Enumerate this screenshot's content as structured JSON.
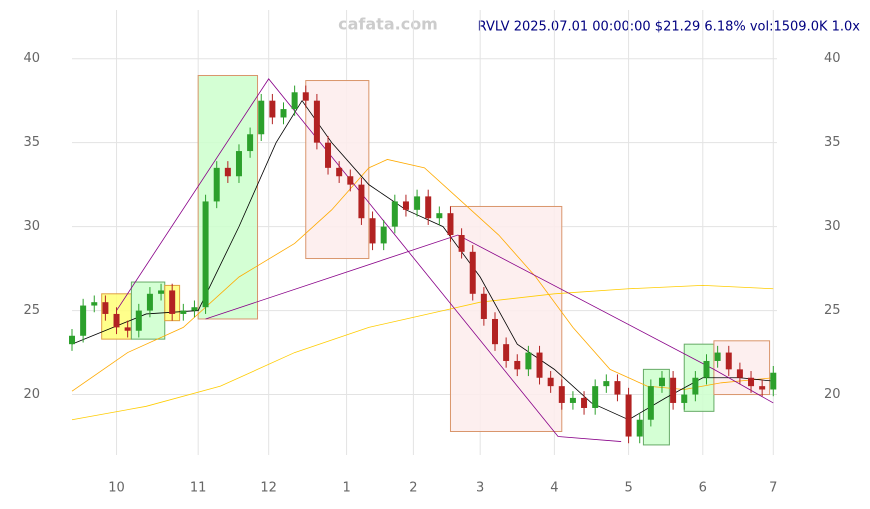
{
  "chart_data": {
    "type": "candlestick",
    "title": "RVLV 2025.07.01 00:00:00 $21.29 6.18% vol:1509.0K 1.0x",
    "watermark": "cafata.com",
    "xlim": [
      0,
      190
    ],
    "ylim": [
      16.4,
      42.9
    ],
    "xticks": [
      {
        "value": 12,
        "label": "10"
      },
      {
        "value": 34,
        "label": "11"
      },
      {
        "value": 53,
        "label": "12"
      },
      {
        "value": 74,
        "label": "1"
      },
      {
        "value": 92,
        "label": "2"
      },
      {
        "value": 110,
        "label": "3"
      },
      {
        "value": 130,
        "label": "4"
      },
      {
        "value": 150,
        "label": "5"
      },
      {
        "value": 170,
        "label": "6"
      },
      {
        "value": 189,
        "label": "7"
      }
    ],
    "yticks": [
      20,
      25,
      30,
      35,
      40
    ],
    "grid": true,
    "up_color": "#2ca02c",
    "down_color": "#b22222",
    "candles": {
      "x": [
        0,
        3,
        6,
        9,
        12,
        15,
        18,
        21,
        24,
        27,
        30,
        33,
        36,
        39,
        42,
        45,
        48,
        51,
        54,
        57,
        60,
        63,
        66,
        69,
        72,
        75,
        78,
        81,
        84,
        87,
        90,
        93,
        96,
        99,
        102,
        105,
        108,
        111,
        114,
        117,
        120,
        123,
        126,
        129,
        132,
        135,
        138,
        141,
        144,
        147,
        150,
        153,
        156,
        159,
        162,
        165,
        168,
        171,
        174,
        177,
        180,
        183,
        186,
        189
      ],
      "open": [
        23.0,
        23.5,
        25.3,
        25.5,
        24.8,
        24.0,
        23.8,
        25.0,
        26.0,
        26.2,
        24.8,
        25.0,
        25.2,
        31.5,
        33.5,
        33.0,
        34.5,
        35.5,
        37.5,
        36.5,
        37.0,
        38.0,
        37.5,
        35.0,
        33.5,
        33.0,
        32.5,
        30.5,
        29.0,
        30.0,
        31.5,
        31.0,
        31.8,
        30.5,
        30.8,
        29.5,
        28.5,
        26.0,
        24.5,
        23.0,
        22.0,
        21.5,
        22.5,
        21.0,
        20.5,
        19.5,
        19.8,
        19.2,
        20.5,
        20.8,
        20.0,
        17.5,
        18.5,
        20.5,
        21.0,
        19.5,
        20.0,
        21.0,
        22.0,
        22.5,
        21.5,
        21.0,
        20.5,
        20.3
      ],
      "high": [
        23.9,
        25.7,
        25.9,
        25.9,
        25.2,
        24.4,
        25.4,
        26.4,
        26.6,
        26.6,
        25.4,
        25.6,
        31.9,
        33.9,
        33.9,
        34.9,
        35.9,
        37.9,
        37.9,
        37.4,
        38.4,
        38.4,
        37.9,
        35.4,
        33.9,
        33.4,
        32.9,
        30.9,
        30.4,
        31.9,
        31.9,
        32.2,
        32.2,
        31.2,
        31.2,
        29.9,
        28.9,
        26.4,
        24.9,
        23.4,
        22.4,
        22.9,
        22.9,
        21.4,
        20.9,
        20.2,
        20.2,
        20.9,
        21.2,
        21.2,
        20.4,
        18.9,
        20.9,
        21.4,
        21.4,
        20.4,
        21.4,
        22.4,
        22.9,
        22.9,
        21.9,
        21.4,
        20.9,
        21.7
      ],
      "low": [
        22.6,
        23.1,
        24.9,
        24.4,
        23.6,
        23.4,
        23.4,
        24.6,
        25.6,
        24.4,
        24.4,
        24.6,
        24.8,
        31.1,
        32.6,
        32.6,
        34.1,
        35.1,
        36.1,
        36.1,
        36.6,
        37.1,
        34.6,
        33.1,
        32.6,
        32.1,
        30.1,
        28.6,
        28.6,
        29.6,
        30.6,
        30.6,
        30.1,
        30.1,
        29.1,
        28.1,
        25.6,
        24.1,
        22.6,
        21.6,
        21.1,
        21.1,
        20.6,
        20.1,
        19.1,
        19.1,
        18.8,
        18.8,
        20.1,
        19.6,
        17.1,
        17.1,
        18.1,
        20.1,
        19.1,
        19.1,
        19.6,
        20.6,
        21.6,
        21.1,
        20.6,
        20.1,
        19.9,
        19.9
      ],
      "close": [
        23.5,
        25.3,
        25.5,
        24.8,
        24.0,
        23.8,
        25.0,
        26.0,
        26.2,
        24.8,
        25.0,
        25.2,
        31.5,
        33.5,
        33.0,
        34.5,
        35.5,
        37.5,
        36.5,
        37.0,
        38.0,
        37.5,
        35.0,
        33.5,
        33.0,
        32.5,
        30.5,
        29.0,
        30.0,
        31.5,
        31.0,
        31.8,
        30.5,
        30.8,
        29.5,
        28.5,
        26.0,
        24.5,
        23.0,
        22.0,
        21.5,
        22.5,
        21.0,
        20.5,
        19.5,
        19.8,
        19.2,
        20.5,
        20.8,
        20.0,
        17.5,
        18.5,
        20.5,
        21.0,
        19.5,
        20.0,
        21.0,
        22.0,
        22.5,
        21.5,
        21.0,
        20.5,
        20.3,
        21.3
      ]
    },
    "boxes": [
      {
        "x": [
          8,
          16
        ],
        "y": [
          23.3,
          26.0
        ],
        "color": "#ffff77",
        "edge": "#e0a040"
      },
      {
        "x": [
          16,
          25
        ],
        "y": [
          23.3,
          26.7
        ],
        "color": "#ccffcc",
        "edge": "#66aa66"
      },
      {
        "x": [
          25,
          29
        ],
        "y": [
          24.4,
          26.5
        ],
        "color": "#ffff77",
        "edge": "#e0a040"
      },
      {
        "x": [
          34,
          50
        ],
        "y": [
          24.5,
          39.0
        ],
        "color": "#ccffcc",
        "edge": "#d9956b"
      },
      {
        "x": [
          63,
          80
        ],
        "y": [
          28.1,
          38.7
        ],
        "color": "#fdecec",
        "edge": "#d9956b"
      },
      {
        "x": [
          102,
          132
        ],
        "y": [
          17.8,
          31.2
        ],
        "color": "#fdecec",
        "edge": "#d9956b"
      },
      {
        "x": [
          154,
          161
        ],
        "y": [
          17.0,
          21.5
        ],
        "color": "#ccffcc",
        "edge": "#66aa66"
      },
      {
        "x": [
          165,
          173
        ],
        "y": [
          19.0,
          23.0
        ],
        "color": "#ccffcc",
        "edge": "#66aa66"
      },
      {
        "x": [
          173,
          188
        ],
        "y": [
          20.0,
          23.2
        ],
        "color": "#fdecec",
        "edge": "#d9956b"
      }
    ],
    "series": [
      {
        "color": "#ffcc00",
        "x": [
          0,
          20,
          40,
          60,
          80,
          100,
          110,
          130,
          150,
          170,
          189
        ],
        "values": [
          18.5,
          19.3,
          20.5,
          22.5,
          24.0,
          25.0,
          25.5,
          26.0,
          26.3,
          26.5,
          26.3
        ]
      },
      {
        "color": "#ffaa00",
        "x": [
          0,
          15,
          30,
          45,
          60,
          70,
          80,
          85,
          95,
          105,
          115,
          125,
          135,
          145,
          155,
          165,
          175,
          189
        ],
        "values": [
          20.2,
          22.5,
          24.0,
          27.0,
          29.0,
          31.0,
          33.5,
          34.0,
          33.5,
          31.5,
          29.5,
          27.0,
          24.0,
          21.5,
          20.5,
          20.3,
          20.7,
          21.0
        ]
      },
      {
        "color": "#000000",
        "x": [
          0,
          20,
          34,
          45,
          55,
          62,
          70,
          80,
          90,
          100,
          110,
          120,
          130,
          140,
          150,
          160,
          170,
          180,
          189
        ],
        "values": [
          23.0,
          24.8,
          25.0,
          30.0,
          35.0,
          37.5,
          35.0,
          32.5,
          31.0,
          30.0,
          27.0,
          23.0,
          21.5,
          19.5,
          18.5,
          19.8,
          21.0,
          21.0,
          20.8
        ]
      },
      {
        "color": "#880088",
        "x": [
          12,
          53,
          131,
          148
        ],
        "values": [
          25.0,
          38.8,
          17.5,
          17.2
        ]
      },
      {
        "color": "#880088",
        "x": [
          36,
          104,
          173,
          189
        ],
        "values": [
          24.5,
          29.5,
          21.5,
          19.5
        ]
      }
    ]
  }
}
